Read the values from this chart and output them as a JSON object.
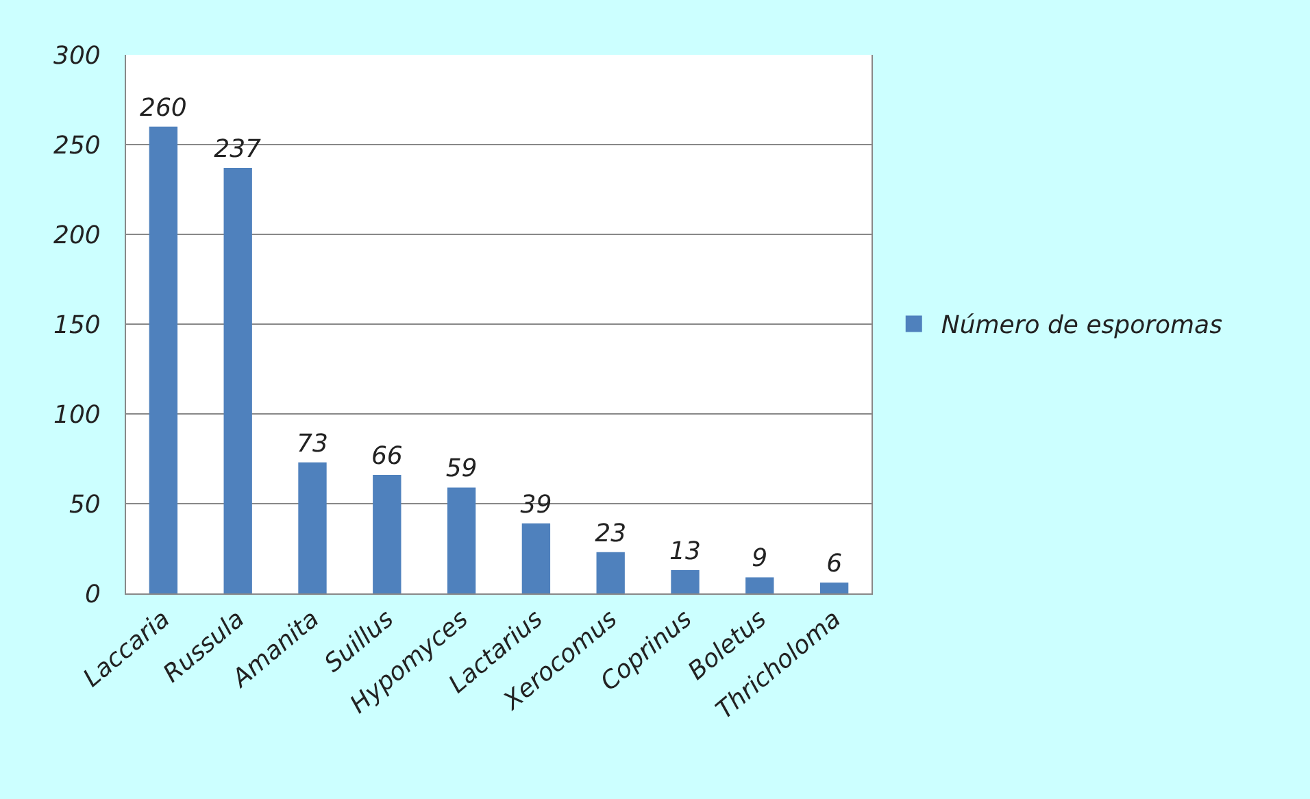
{
  "chart_data": {
    "type": "bar",
    "categories": [
      "Laccaria",
      "Russula",
      "Amanita",
      "Suillus",
      "Hypomyces",
      "Lactarius",
      "Xerocomus",
      "Coprinus",
      "Boletus",
      "Thricholoma"
    ],
    "series": [
      {
        "name": "Número de esporomas",
        "color": "#4f81bd",
        "values": [
          260,
          237,
          73,
          66,
          59,
          39,
          23,
          13,
          9,
          6
        ]
      }
    ],
    "ylim": [
      0,
      300
    ],
    "yticks": [
      0,
      50,
      100,
      150,
      200,
      250,
      300
    ],
    "grid": "y",
    "legend": "right",
    "data_labels": true
  }
}
